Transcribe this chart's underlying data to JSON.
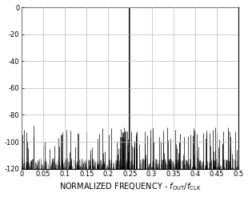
{
  "xlim": [
    0,
    0.5
  ],
  "ylim": [
    -120,
    0
  ],
  "yticks": [
    0,
    -20,
    -40,
    -60,
    -80,
    -100,
    -120
  ],
  "xtick_vals": [
    0,
    0.05,
    0.1,
    0.15,
    0.2,
    0.25,
    0.3,
    0.35,
    0.4,
    0.45,
    0.5
  ],
  "xtick_labels": [
    "0",
    "0.05",
    "0.1",
    "0.15",
    "0.2",
    "0.25",
    "0.3",
    "0.35",
    "0.4",
    "0.45",
    "0.5"
  ],
  "signal_freq": 0.25,
  "signal_amplitude_db": 0,
  "noise_floor_db": -120,
  "spur_max_db": -90,
  "background_color": "#ffffff",
  "line_color": "#000000",
  "grid_color": "#bbbbbb",
  "tick_labelsize": 6,
  "xlabel_fontsize": 7
}
